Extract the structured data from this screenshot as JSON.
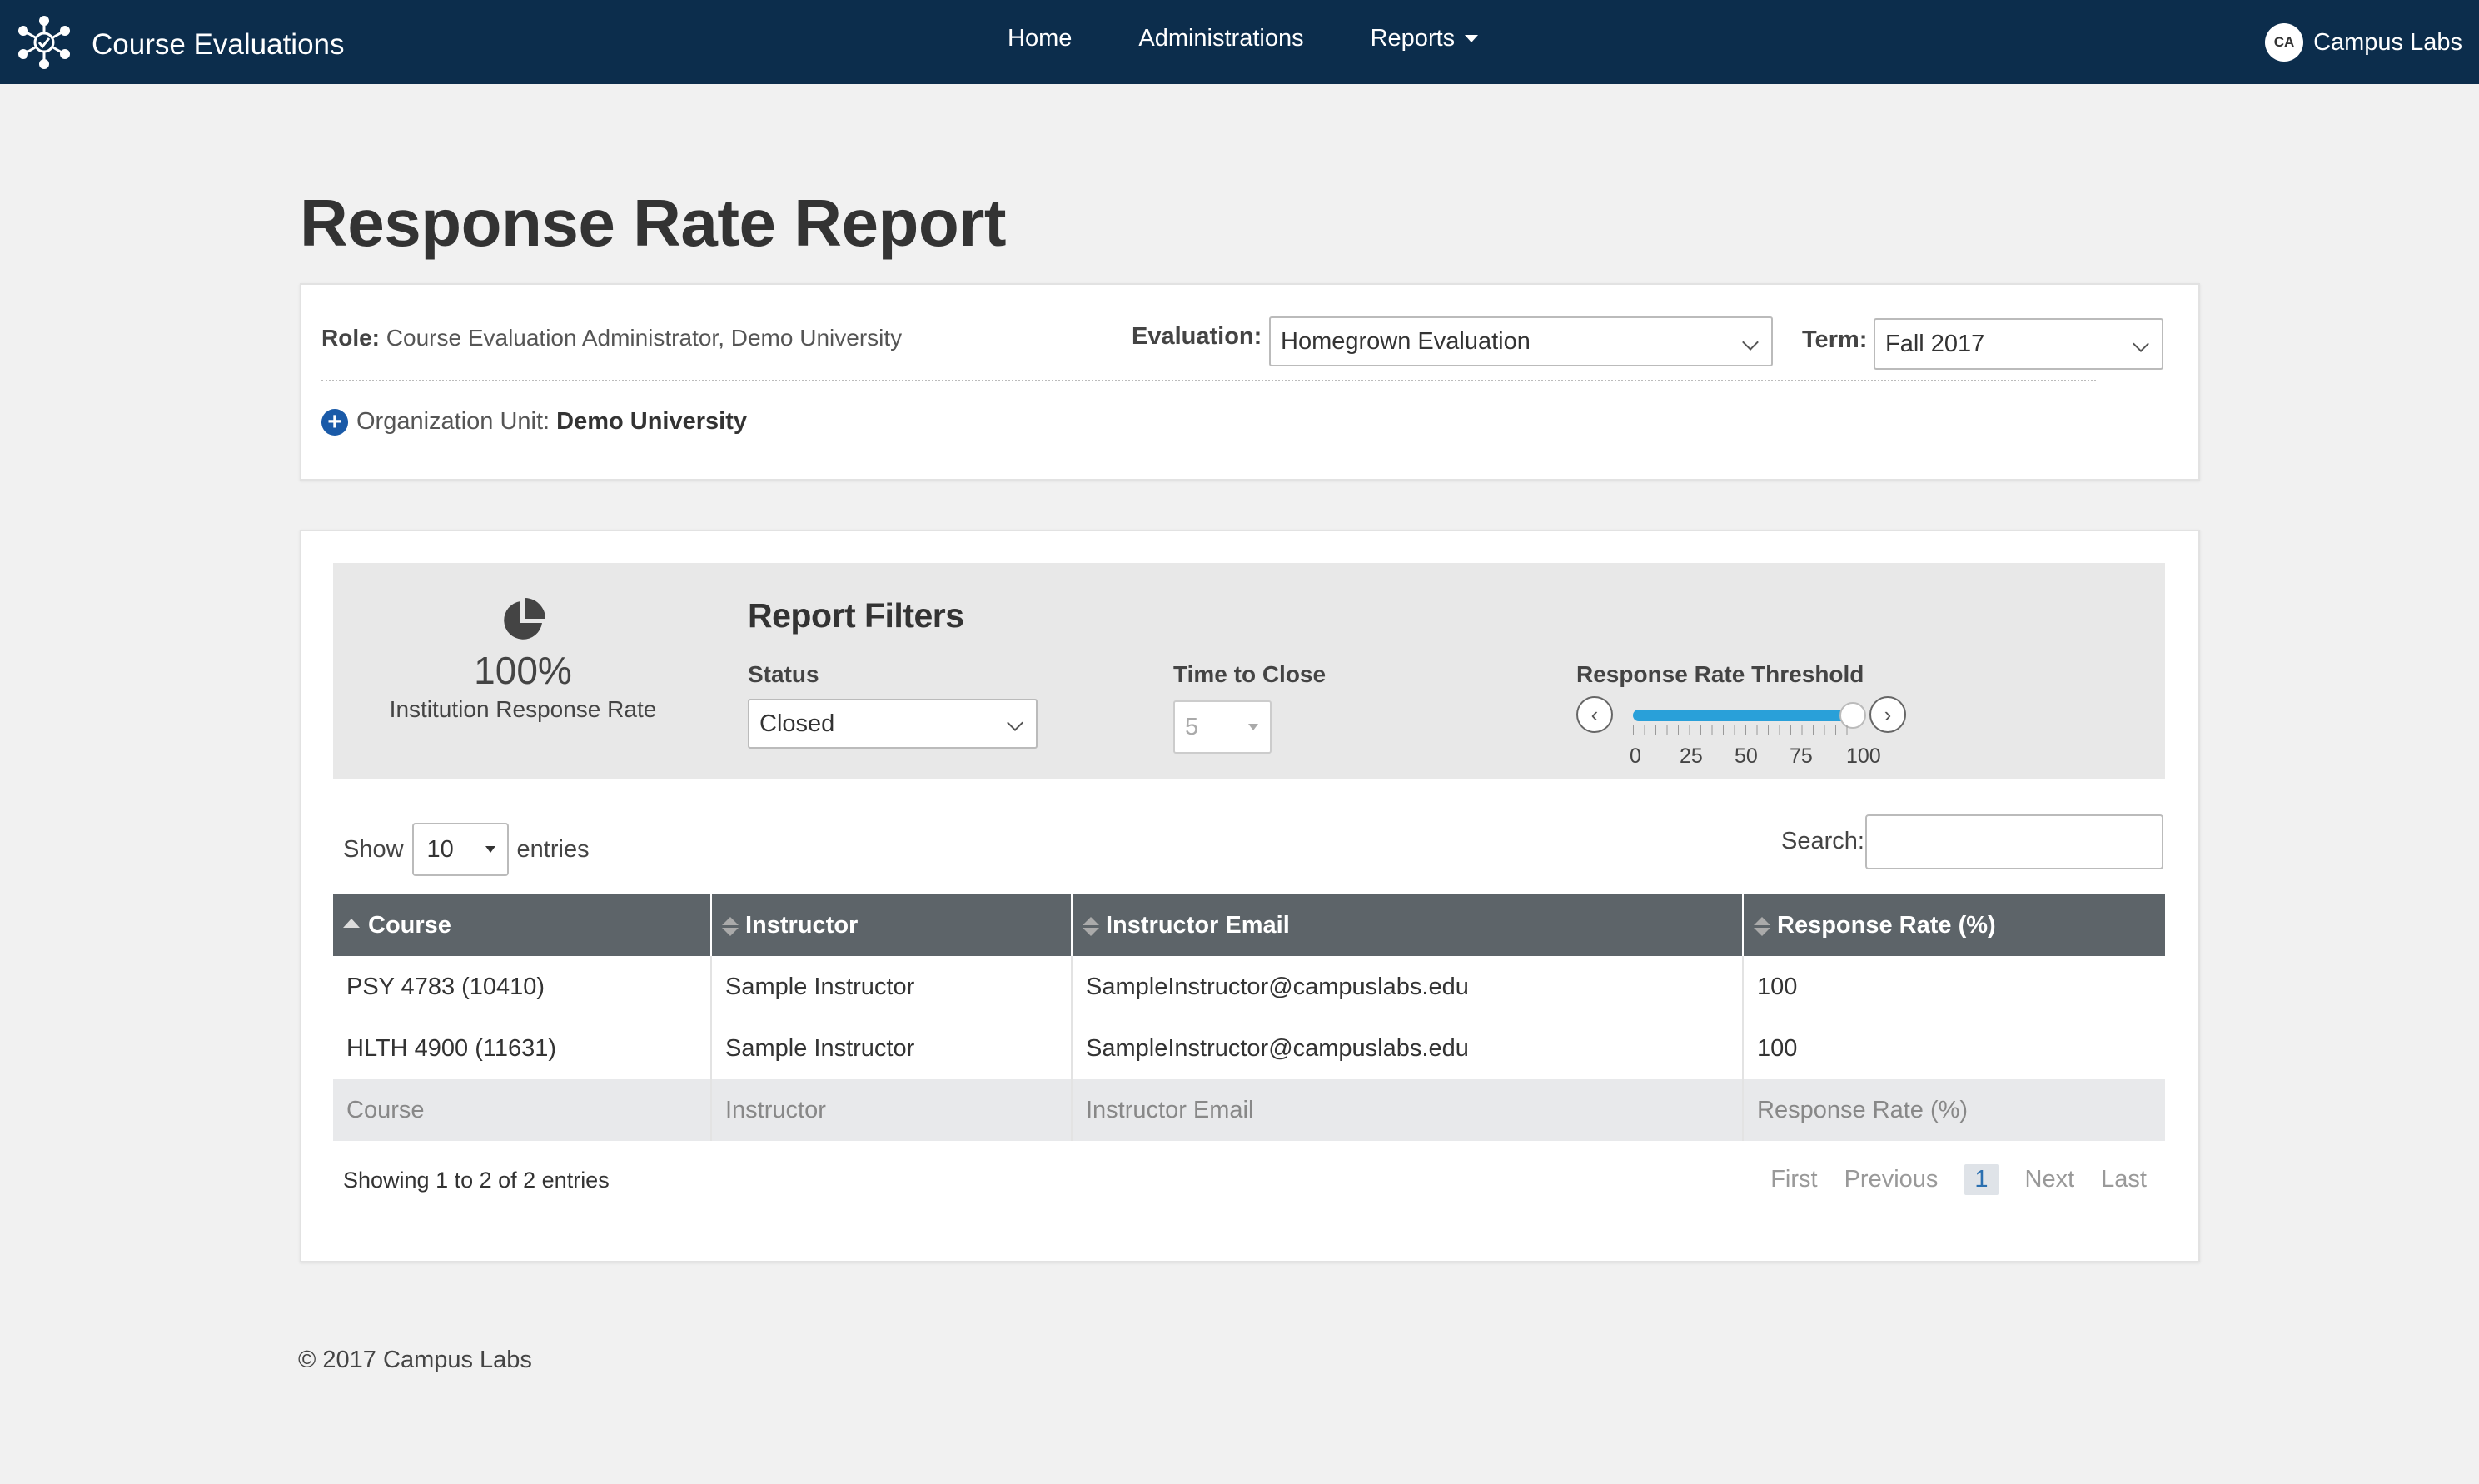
{
  "app": {
    "title": "Course Evaluations",
    "nav": [
      "Home",
      "Administrations",
      "Reports"
    ],
    "user_initials": "CA",
    "user_name": "Campus Labs"
  },
  "page": {
    "title": "Response Rate Report"
  },
  "context": {
    "role_label": "Role:",
    "role_value": "Course Evaluation Administrator, Demo University",
    "evaluation_label": "Evaluation:",
    "evaluation_value": "Homegrown Evaluation",
    "term_label": "Term:",
    "term_value": "Fall 2017",
    "org_label": "Organization Unit:",
    "org_value": "Demo University"
  },
  "summary": {
    "rate": "100%",
    "label": "Institution Response Rate"
  },
  "filters": {
    "title": "Report Filters",
    "status_label": "Status",
    "status_value": "Closed",
    "ttc_label": "Time to Close",
    "ttc_value": "5",
    "threshold_label": "Response Rate Threshold",
    "threshold_value": 100,
    "threshold_ticks": [
      "0",
      "25",
      "50",
      "75",
      "100"
    ]
  },
  "table": {
    "show_label": "Show",
    "length_value": "10",
    "entries_label": "entries",
    "search_label": "Search:",
    "columns": [
      "Course",
      "Instructor",
      "Instructor Email",
      "Response Rate (%)"
    ],
    "rows": [
      [
        "PSY 4783 (10410)",
        "Sample Instructor",
        "SampleInstructor@campuslabs.edu",
        "100"
      ],
      [
        "HLTH 4900 (11631)",
        "Sample Instructor",
        "SampleInstructor@campuslabs.edu",
        "100"
      ]
    ],
    "footer": [
      "Course",
      "Instructor",
      "Instructor Email",
      "Response Rate (%)"
    ],
    "info": "Showing 1 to 2 of 2 entries",
    "paging": {
      "first": "First",
      "previous": "Previous",
      "page": "1",
      "next": "Next",
      "last": "Last"
    }
  },
  "footer": {
    "text": "© 2017 Campus Labs"
  }
}
